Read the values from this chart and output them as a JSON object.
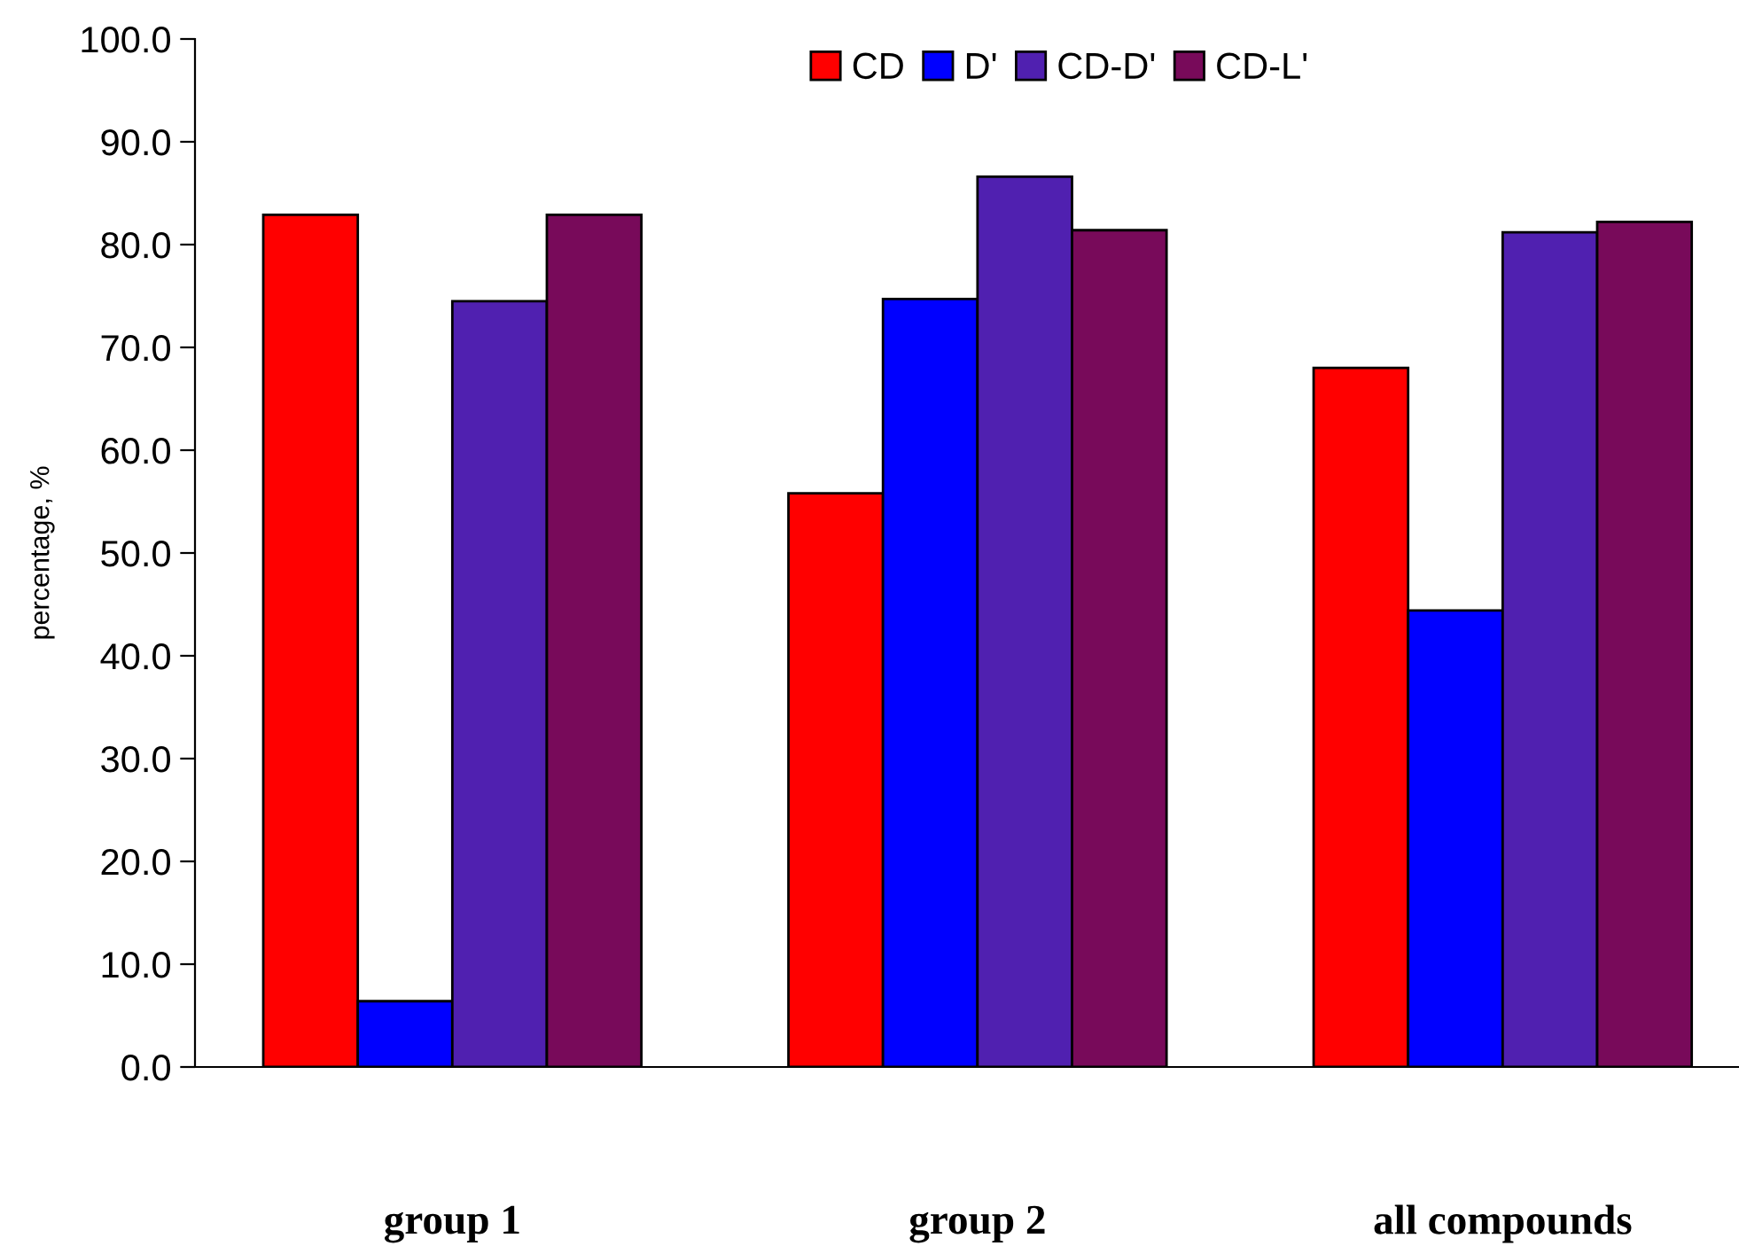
{
  "chart_data": {
    "type": "bar",
    "ylabel": "percentage, %",
    "categories": [
      "group 1",
      "group 2",
      "all compounds"
    ],
    "series": [
      {
        "name": "CD",
        "color": "#ff0000",
        "values": [
          82.9,
          55.8,
          68.0
        ]
      },
      {
        "name": "D'",
        "color": "#0000ff",
        "values": [
          6.4,
          74.7,
          44.4
        ]
      },
      {
        "name": "CD-D'",
        "color": "#5020b0",
        "values": [
          74.5,
          86.6,
          81.2
        ]
      },
      {
        "name": "CD-L'",
        "color": "#780a5a",
        "values": [
          82.9,
          81.4,
          82.2
        ]
      }
    ],
    "ylim": [
      0,
      100
    ],
    "yticks": [
      {
        "value": 0,
        "label": "0.0"
      },
      {
        "value": 10,
        "label": "10.0"
      },
      {
        "value": 20,
        "label": "20.0"
      },
      {
        "value": 30,
        "label": "30.0"
      },
      {
        "value": 40,
        "label": "40.0"
      },
      {
        "value": 50,
        "label": "50.0"
      },
      {
        "value": 60,
        "label": "60.0"
      },
      {
        "value": 70,
        "label": "70.0"
      },
      {
        "value": 80,
        "label": "80.0"
      },
      {
        "value": 90,
        "label": "90.0"
      },
      {
        "value": 100,
        "label": "100.0"
      }
    ],
    "grid": false,
    "legend": "top"
  }
}
